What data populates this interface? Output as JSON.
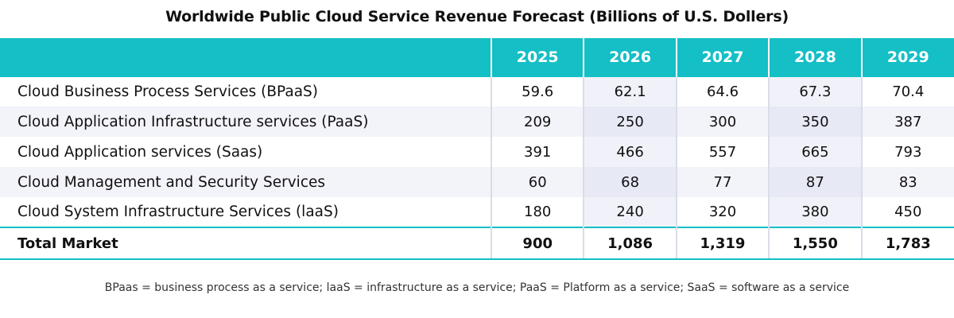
{
  "chart_data": {
    "type": "table",
    "title": "Worldwide Public Cloud Service Revenue Forecast (Billions of U.S. Dollers)",
    "columns": [
      "2025",
      "2026",
      "2027",
      "2028",
      "2029"
    ],
    "rows": [
      {
        "label": "Cloud Business Process Services (BPaaS)",
        "values": [
          "59.6",
          "62.1",
          "64.6",
          "67.3",
          "70.4"
        ]
      },
      {
        "label": "Cloud Application Infrastructure services (PaaS)",
        "values": [
          "209",
          "250",
          "300",
          "350",
          "387"
        ]
      },
      {
        "label": "Cloud Application services (Saas)",
        "values": [
          "391",
          "466",
          "557",
          "665",
          "793"
        ]
      },
      {
        "label": "Cloud Management and Security Services",
        "values": [
          "60",
          "68",
          "77",
          "87",
          "83"
        ]
      },
      {
        "label": "Cloud System Infrastructure Services (laaS)",
        "values": [
          "180",
          "240",
          "320",
          "380",
          "450"
        ]
      }
    ],
    "total": {
      "label": "Total Market",
      "values": [
        "900",
        "1,086",
        "1,319",
        "1,550",
        "1,783"
      ]
    },
    "footnote": "BPaas = business process as a service; laaS = infrastructure as a service; PaaS =  Platform as a service; SaaS = software as a service"
  },
  "colors": {
    "header_bg": "#14bfc6",
    "header_text": "#ffffff",
    "row_alt_bg": "#f3f3fa",
    "column_shade": "#e7e9f5"
  }
}
